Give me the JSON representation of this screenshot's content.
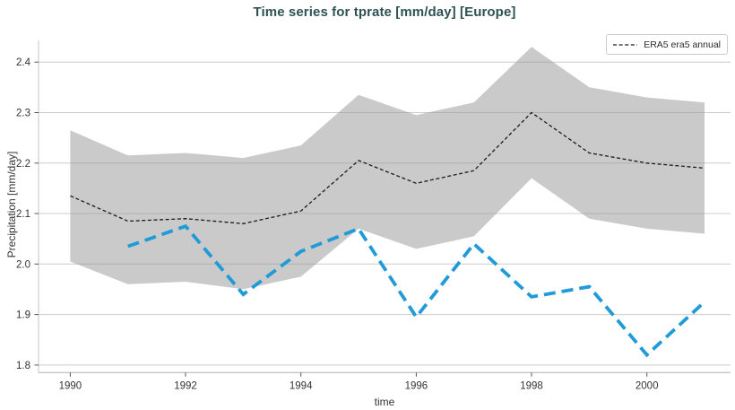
{
  "colors": {
    "title_text": "#2e5154",
    "axis_text": "#333333",
    "grid_line": "#cccccc",
    "spine": "#c4c4c4",
    "tick_mark": "#555555",
    "band_fill": "#969696",
    "era5_line": "#1a1a1a",
    "blue_line": "#209bd8",
    "legend_border": "#cccccc"
  },
  "legend": {
    "position": "upper right",
    "entries": [
      {
        "label": "ERA5 era5 annual",
        "line_style": "dashed",
        "line_color": "#1a1a1a"
      }
    ]
  },
  "chart_data": {
    "type": "line",
    "title": "Time series for tprate [mm/day] [Europe]",
    "xlabel": "time",
    "ylabel": "Precipitation [mm/day]",
    "xlim": [
      1989.45,
      2001.45
    ],
    "ylim": [
      1.785,
      2.443
    ],
    "x_ticks": [
      1990,
      1992,
      1994,
      1996,
      1998,
      2000
    ],
    "y_ticks": [
      1.8,
      1.9,
      2.0,
      2.1,
      2.2,
      2.3,
      2.4
    ],
    "grid": true,
    "legend_position": "upper right",
    "series": [
      {
        "id": "era5-annual-line",
        "name": "ERA5 era5 annual",
        "in_legend": true,
        "color": "#1a1a1a",
        "style": "dashed",
        "line_width": 1.3,
        "dash_pattern": "4,2.6",
        "x": [
          1990,
          1991,
          1992,
          1993,
          1994,
          1995,
          1996,
          1997,
          1998,
          1999,
          2000,
          2001
        ],
        "y": [
          2.135,
          2.085,
          2.09,
          2.08,
          2.105,
          2.205,
          2.16,
          2.185,
          2.3,
          2.22,
          2.2,
          2.19
        ]
      },
      {
        "id": "blue-dashed-series",
        "name": "",
        "in_legend": false,
        "color": "#209bd8",
        "style": "dashed",
        "line_width": 3.8,
        "dash_pattern": "13,7",
        "x": [
          1991,
          1992,
          1993,
          1994,
          1995,
          1996,
          1997,
          1998,
          1999,
          2000,
          2001
        ],
        "y": [
          2.035,
          2.075,
          1.94,
          2.025,
          2.07,
          1.895,
          2.04,
          1.935,
          1.955,
          1.82,
          1.925
        ]
      }
    ],
    "band": {
      "id": "gray-uncertainty-band",
      "fill_color": "#969696",
      "fill_opacity": 0.5,
      "x": [
        1990,
        1991,
        1992,
        1993,
        1994,
        1995,
        1996,
        1997,
        1998,
        1999,
        2000,
        2001
      ],
      "upper": [
        2.265,
        2.215,
        2.22,
        2.21,
        2.235,
        2.335,
        2.295,
        2.32,
        2.43,
        2.35,
        2.33,
        2.32
      ],
      "lower": [
        2.005,
        1.96,
        1.965,
        1.95,
        1.975,
        2.07,
        2.03,
        2.055,
        2.17,
        2.09,
        2.07,
        2.06
      ]
    }
  }
}
